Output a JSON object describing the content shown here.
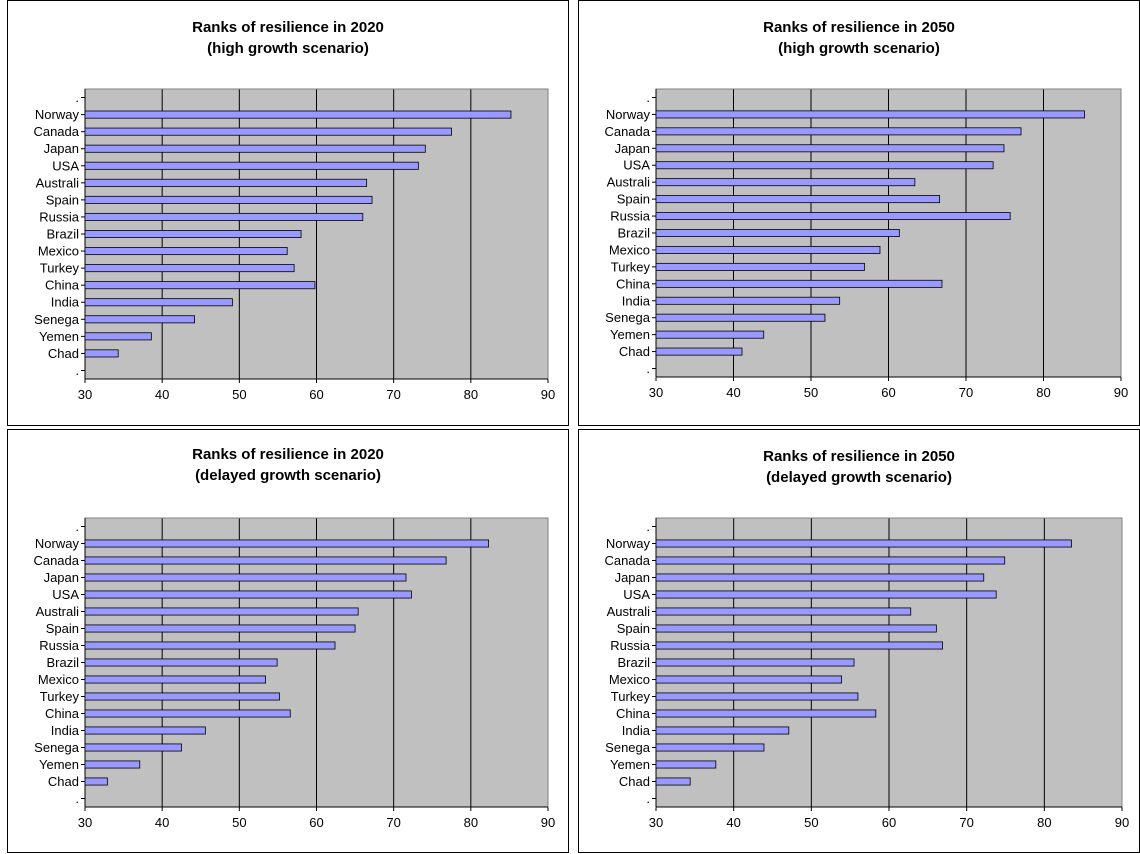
{
  "chart_data": [
    {
      "type": "bar",
      "title": [
        "Ranks of resilience in 2020",
        "(high growth scenario)"
      ],
      "top_tick": ".",
      "bottom_tick": ".",
      "categories": [
        "Norway",
        "Canada",
        "Japan",
        "USA",
        "Australi",
        "Spain",
        "Russia",
        "Brazil",
        "Mexico",
        "Turkey",
        "China",
        "India",
        "Senega",
        "Yemen",
        "Chad"
      ],
      "values": [
        85.2,
        77.5,
        74.1,
        73.2,
        66.5,
        67.2,
        66.0,
        58.0,
        56.2,
        57.1,
        59.8,
        49.1,
        44.2,
        38.6,
        34.3
      ],
      "xlim": [
        30,
        90
      ],
      "xticks": [
        30,
        40,
        50,
        60,
        70,
        80,
        90
      ],
      "bar_color": "#9999ff",
      "plot_bg": "#c0c0c0",
      "grid": true
    },
    {
      "type": "bar",
      "title": [
        "Ranks of resilience in 2050",
        "(high growth scenario)"
      ],
      "top_tick": ".",
      "bottom_tick": ".",
      "categories": [
        "Norway",
        "Canada",
        "Japan",
        "USA",
        "Australi",
        "Spain",
        "Russia",
        "Brazil",
        "Mexico",
        "Turkey",
        "China",
        "India",
        "Senega",
        "Yemen",
        "Chad"
      ],
      "values": [
        85.3,
        77.1,
        74.9,
        73.5,
        63.4,
        66.6,
        75.7,
        61.4,
        58.9,
        56.9,
        66.9,
        53.7,
        51.8,
        43.9,
        41.1
      ],
      "xlim": [
        30,
        90
      ],
      "xticks": [
        30,
        40,
        50,
        60,
        70,
        80,
        90
      ],
      "bar_color": "#9999ff",
      "plot_bg": "#c0c0c0",
      "grid": true
    },
    {
      "type": "bar",
      "title": [
        "Ranks of resilience in 2020",
        "(delayed growth scenario)"
      ],
      "top_tick": ".",
      "bottom_tick": ".",
      "categories": [
        "Norway",
        "Canada",
        "Japan",
        "USA",
        "Australi",
        "Spain",
        "Russia",
        "Brazil",
        "Mexico",
        "Turkey",
        "China",
        "India",
        "Senega",
        "Yemen",
        "Chad"
      ],
      "values": [
        82.3,
        76.8,
        71.6,
        72.3,
        65.4,
        65.0,
        62.4,
        54.9,
        53.4,
        55.2,
        56.6,
        45.6,
        42.5,
        37.1,
        32.9
      ],
      "xlim": [
        30,
        90
      ],
      "xticks": [
        30,
        40,
        50,
        60,
        70,
        80,
        90
      ],
      "bar_color": "#9999ff",
      "plot_bg": "#c0c0c0",
      "grid": true
    },
    {
      "type": "bar",
      "title": [
        "Ranks of resilience in 2050",
        "(delayed growth scenario)"
      ],
      "top_tick": ".",
      "bottom_tick": ".",
      "categories": [
        "Norway",
        "Canada",
        "Japan",
        "USA",
        "Australi",
        "Spain",
        "Russia",
        "Brazil",
        "Mexico",
        "Turkey",
        "China",
        "India",
        "Senega",
        "Yemen",
        "Chad"
      ],
      "values": [
        83.5,
        74.9,
        72.2,
        73.8,
        62.8,
        66.1,
        66.9,
        55.5,
        53.9,
        56.0,
        58.3,
        47.1,
        43.9,
        37.7,
        34.4
      ],
      "xlim": [
        30,
        90
      ],
      "xticks": [
        30,
        40,
        50,
        60,
        70,
        80,
        90
      ],
      "bar_color": "#9999ff",
      "plot_bg": "#c0c0c0",
      "grid": true
    }
  ]
}
